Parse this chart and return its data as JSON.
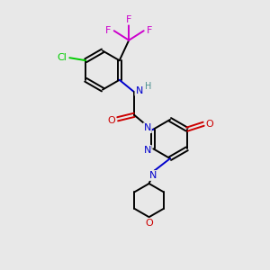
{
  "bg_color": "#e8e8e8",
  "atom_colors": {
    "C": "#000000",
    "N": "#0000cc",
    "O": "#cc0000",
    "F": "#cc00cc",
    "Cl": "#00cc00",
    "H": "#4a9090"
  }
}
